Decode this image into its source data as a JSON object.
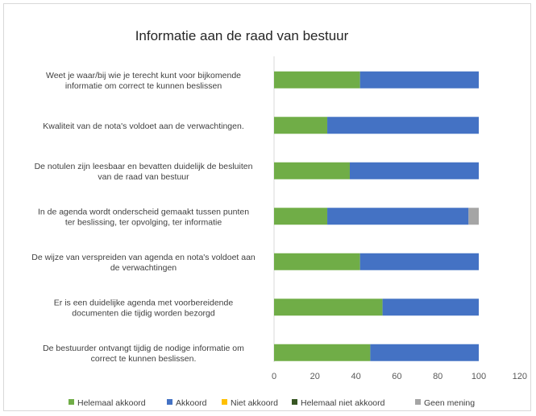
{
  "chart_data": {
    "type": "bar",
    "orientation": "horizontal",
    "stacked": true,
    "title": "Informatie aan de raad van bestuur",
    "categories": [
      [
        "Weet je waar/bij wie je terecht kunt voor bijkomende",
        "informatie om correct te kunnen beslissen"
      ],
      [
        "Kwaliteit van de nota's voldoet aan de verwachtingen."
      ],
      [
        "De notulen zijn leesbaar en bevatten duidelijk de besluiten",
        "van de raad van bestuur"
      ],
      [
        "In de agenda wordt onderscheid gemaakt tussen punten",
        "ter beslissing, ter opvolging, ter informatie"
      ],
      [
        "De wijze van verspreiden van agenda en nota's voldoet aan",
        "de verwachtingen"
      ],
      [
        "Er is een duidelijke agenda met voorbereidende",
        "documenten die tijdig worden bezorgd"
      ],
      [
        "De bestuurder ontvangt tijdig de nodige informatie om",
        "correct te kunnen beslissen."
      ]
    ],
    "series": [
      {
        "name": "Helemaal akkoord",
        "color": "#70ad47",
        "values": [
          42,
          26,
          37,
          26,
          42,
          53,
          47
        ]
      },
      {
        "name": "Akkoord",
        "color": "#4472c4",
        "values": [
          58,
          74,
          63,
          69,
          58,
          47,
          53
        ]
      },
      {
        "name": "Niet akkoord",
        "color": "#ffc000",
        "values": [
          0,
          0,
          0,
          0,
          0,
          0,
          0
        ]
      },
      {
        "name": "Helemaal niet akkoord",
        "color": "#375623",
        "values": [
          0,
          0,
          0,
          0,
          0,
          0,
          0
        ]
      },
      {
        "name": "Geen mening",
        "color": "#a5a5a5",
        "values": [
          0,
          0,
          0,
          5,
          0,
          0,
          0
        ]
      }
    ],
    "xlim": [
      0,
      120
    ],
    "xticks": [
      0,
      20,
      40,
      60,
      80,
      100,
      120
    ],
    "grid": false,
    "legend_position": "bottom"
  }
}
